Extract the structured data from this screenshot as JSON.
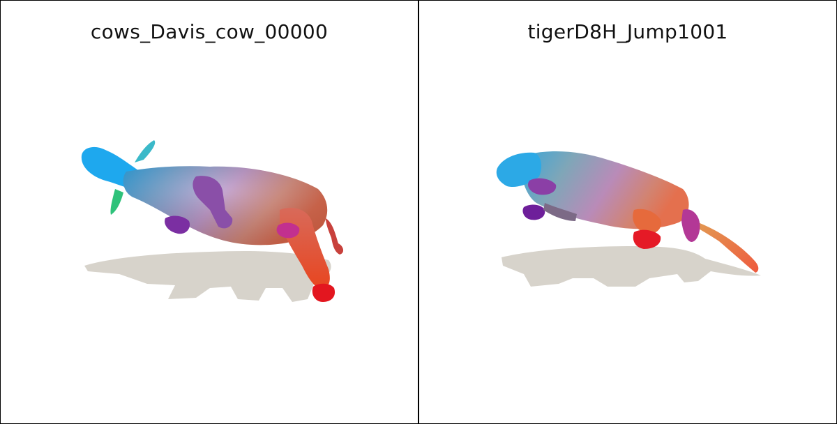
{
  "panels": [
    {
      "title": "cows_Davis_cow_00000"
    },
    {
      "title": "tigerD8H_Jump1001"
    }
  ],
  "colors": {
    "shadow": "#d7d3cb",
    "frame": "#000000"
  }
}
